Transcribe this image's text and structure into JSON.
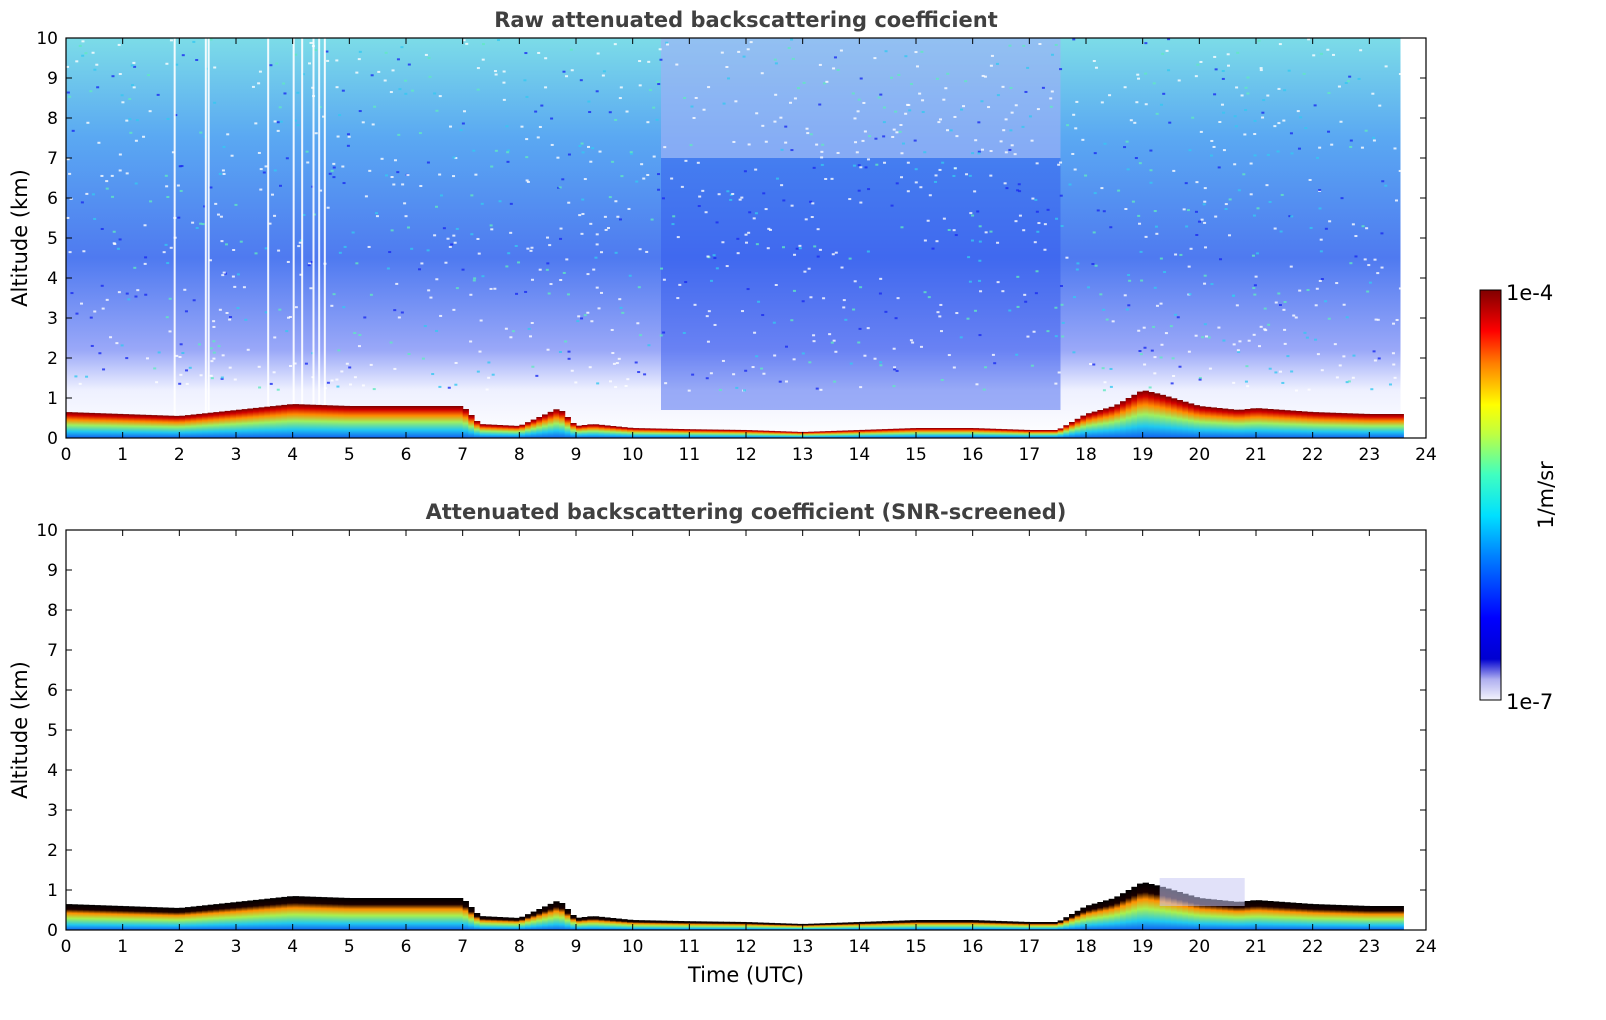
{
  "chart_data": [
    {
      "type": "heatmap",
      "title": "Raw attenuated backscattering coefficient",
      "xlabel": "",
      "ylabel": "Altitude (km)",
      "xlim": [
        0,
        24
      ],
      "ylim": [
        0,
        10
      ],
      "xticks": [
        0,
        1,
        2,
        3,
        4,
        5,
        6,
        7,
        8,
        9,
        10,
        11,
        12,
        13,
        14,
        15,
        16,
        17,
        18,
        19,
        20,
        21,
        22,
        23,
        24
      ],
      "yticks": [
        0,
        1,
        2,
        3,
        4,
        5,
        6,
        7,
        8,
        9,
        10
      ],
      "data_end_time": 23.55,
      "boundary_layer_top_km": {
        "time": [
          0,
          1,
          2,
          3,
          4,
          5,
          6,
          7,
          7.3,
          8,
          8.7,
          9,
          9.3,
          10,
          11,
          12,
          13,
          14,
          15,
          16,
          17,
          17.5,
          18,
          18.5,
          19,
          19.3,
          20,
          20.7,
          21,
          22,
          23,
          23.55
        ],
        "top": [
          0.65,
          0.6,
          0.55,
          0.7,
          0.85,
          0.8,
          0.8,
          0.8,
          0.35,
          0.3,
          0.75,
          0.3,
          0.35,
          0.25,
          0.22,
          0.2,
          0.15,
          0.2,
          0.25,
          0.25,
          0.2,
          0.2,
          0.6,
          0.8,
          1.2,
          1.1,
          0.8,
          0.7,
          0.75,
          0.65,
          0.6,
          0.6
        ]
      },
      "noisy_columns_times": [
        10.5,
        17.55
      ],
      "grid": false
    },
    {
      "type": "heatmap",
      "title": "Attenuated backscattering coefficient (SNR-screened)",
      "xlabel": "Time (UTC)",
      "ylabel": "Altitude (km)",
      "xlim": [
        0,
        24
      ],
      "ylim": [
        0,
        10
      ],
      "xticks": [
        0,
        1,
        2,
        3,
        4,
        5,
        6,
        7,
        8,
        9,
        10,
        11,
        12,
        13,
        14,
        15,
        16,
        17,
        18,
        19,
        20,
        21,
        22,
        23,
        24
      ],
      "yticks": [
        0,
        1,
        2,
        3,
        4,
        5,
        6,
        7,
        8,
        9,
        10
      ],
      "data_end_time": 23.55,
      "grid": false
    }
  ],
  "colorbar": {
    "label": "1/m/sr",
    "min_label": "1e-7",
    "max_label": "1e-4",
    "scale": "log",
    "colormap": "jet",
    "low_colors": [
      "#ffffff",
      "#d8d8f8",
      "#a8a8f0"
    ]
  },
  "axes_text": {
    "top_title": "Raw attenuated backscattering coefficient",
    "bottom_title": "Attenuated backscattering coefficient (SNR-screened)",
    "ylabel_top": "Altitude (km)",
    "ylabel_bottom": "Altitude (km)",
    "xlabel_bottom": "Time (UTC)"
  }
}
